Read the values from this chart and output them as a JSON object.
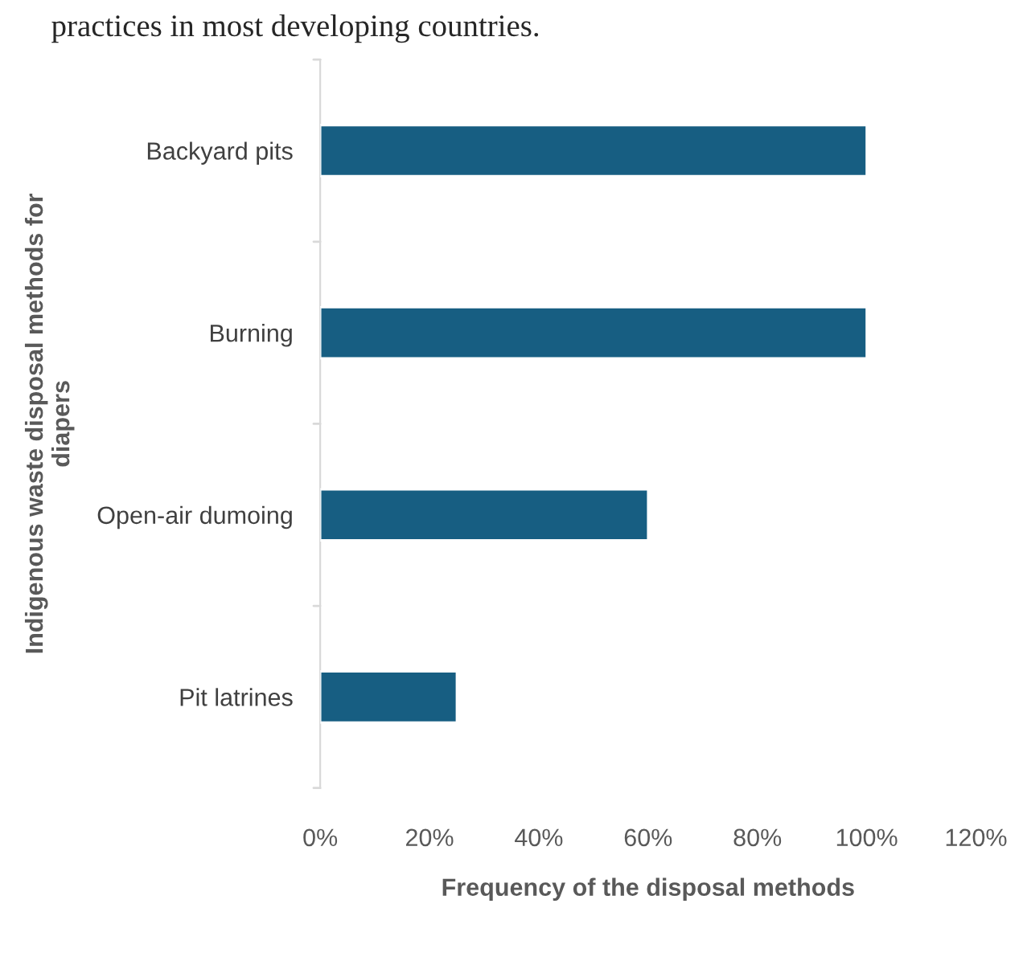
{
  "chart_data": {
    "type": "bar",
    "orientation": "horizontal",
    "categories": [
      "Backyard pits",
      "Burning",
      "Open-air dumoing",
      "Pit latrines"
    ],
    "values": [
      100,
      100,
      60,
      25
    ],
    "color": "#175e82",
    "xlabel": "Frequency of the disposal methods",
    "ylabel": "Indigenous waste disposal methods for\ndiapers",
    "xlim": [
      0,
      120
    ],
    "xticks": [
      {
        "value": 0,
        "label": "0%"
      },
      {
        "value": 20,
        "label": "20%"
      },
      {
        "value": 40,
        "label": "40%"
      },
      {
        "value": 60,
        "label": "60%"
      },
      {
        "value": 80,
        "label": "80%"
      },
      {
        "value": 100,
        "label": "100%"
      },
      {
        "value": 120,
        "label": "120%"
      }
    ],
    "annotations": [
      "practices in most developing countries."
    ],
    "grid": false,
    "legend": false
  }
}
